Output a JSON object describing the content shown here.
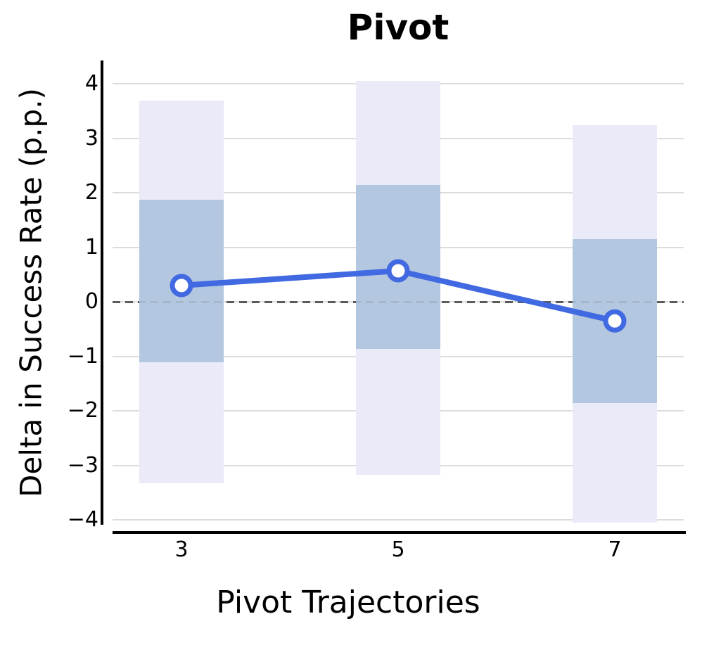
{
  "chart_data": {
    "type": "line",
    "title": "Pivot",
    "xlabel": "Pivot Trajectories",
    "ylabel": "Delta in Success Rate (p.p.)",
    "categories": [
      "3",
      "5",
      "7"
    ],
    "series": [
      {
        "name": "delta-success-rate",
        "values": [
          0.3,
          0.57,
          -0.35
        ]
      }
    ],
    "bands": {
      "inner": {
        "low": [
          -1.11,
          -0.86,
          -1.86
        ],
        "high": [
          1.87,
          2.15,
          1.15
        ]
      },
      "outer": {
        "low": [
          -3.33,
          -3.17,
          -4.05
        ],
        "high": [
          3.7,
          4.05,
          3.24
        ]
      }
    },
    "yticks": [
      4,
      3,
      2,
      1,
      0,
      -1,
      -2,
      -3,
      -4
    ],
    "ylim": [
      -4.09,
      4.43
    ],
    "zero_line": true,
    "grid": true,
    "legend": false,
    "colors": {
      "line": "#4169E1",
      "marker_fill": "#FFFFFF",
      "inner_band": "#B4C7E1",
      "outer_band": "#EAEAF8",
      "zero_line": "#5A5A5A",
      "gridline": "#DCDCDC",
      "axis": "#000000"
    }
  }
}
